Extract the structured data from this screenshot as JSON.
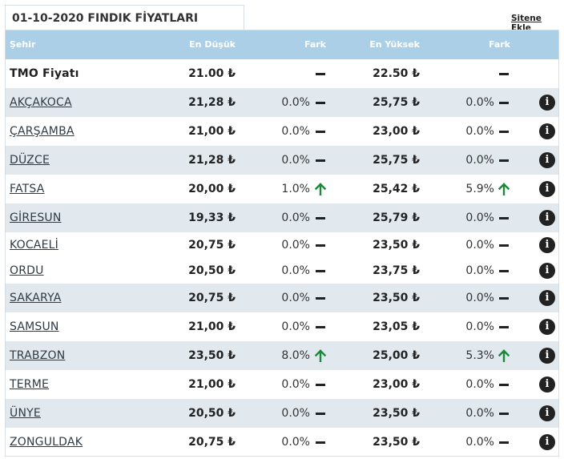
{
  "header": {
    "title": "01-10-2020 FINDIK FİYATLARI",
    "site_link": "Sitene Ekle"
  },
  "columns": {
    "city": "Şehir",
    "low": "En Düşük",
    "diff_low": "Fark",
    "high": "En Yüksek",
    "diff_high": "Fark"
  },
  "colors": {
    "header_bg": "#abcfe6",
    "row_alt": "#e1e9ef",
    "up_arrow": "#1a8a3a"
  },
  "rows": [
    {
      "city": "TMO Fiyatı",
      "low": "21.00 ₺",
      "diff_low": "",
      "trend_low": "flat",
      "high": "22.50 ₺",
      "diff_high": "",
      "trend_high": "flat",
      "info": false,
      "link": false
    },
    {
      "city": "AKÇAKOCA",
      "low": "21,28 ₺",
      "diff_low": "0.0%",
      "trend_low": "flat",
      "high": "25,75 ₺",
      "diff_high": "0.0%",
      "trend_high": "flat",
      "info": true,
      "link": true
    },
    {
      "city": "ÇARŞAMBA",
      "low": "21,00 ₺",
      "diff_low": "0.0%",
      "trend_low": "flat",
      "high": "23,00 ₺",
      "diff_high": "0.0%",
      "trend_high": "flat",
      "info": true,
      "link": true
    },
    {
      "city": "DÜZCE",
      "low": "21,28 ₺",
      "diff_low": "0.0%",
      "trend_low": "flat",
      "high": "25,75 ₺",
      "diff_high": "0.0%",
      "trend_high": "flat",
      "info": true,
      "link": true
    },
    {
      "city": "FATSA",
      "low": "20,00 ₺",
      "diff_low": "1.0%",
      "trend_low": "up",
      "high": "25,42 ₺",
      "diff_high": "5.9%",
      "trend_high": "up",
      "info": true,
      "link": true
    },
    {
      "city": "GİRESUN",
      "low": "19,33 ₺",
      "diff_low": "0.0%",
      "trend_low": "flat",
      "high": "25,79 ₺",
      "diff_high": "0.0%",
      "trend_high": "flat",
      "info": true,
      "link": true
    },
    {
      "city": "KOCAELİ",
      "low": "20,75 ₺",
      "diff_low": "0.0%",
      "trend_low": "flat",
      "high": "23,50 ₺",
      "diff_high": "0.0%",
      "trend_high": "flat",
      "info": true,
      "link": true
    },
    {
      "city": "ORDU",
      "low": "20,50 ₺",
      "diff_low": "0.0%",
      "trend_low": "flat",
      "high": "23,75 ₺",
      "diff_high": "0.0%",
      "trend_high": "flat",
      "info": true,
      "link": true
    },
    {
      "city": "SAKARYA",
      "low": "20,75 ₺",
      "diff_low": "0.0%",
      "trend_low": "flat",
      "high": "23,50 ₺",
      "diff_high": "0.0%",
      "trend_high": "flat",
      "info": true,
      "link": true
    },
    {
      "city": "SAMSUN",
      "low": "21,00 ₺",
      "diff_low": "0.0%",
      "trend_low": "flat",
      "high": "23,05 ₺",
      "diff_high": "0.0%",
      "trend_high": "flat",
      "info": true,
      "link": true
    },
    {
      "city": "TRABZON",
      "low": "23,50 ₺",
      "diff_low": "8.0%",
      "trend_low": "up",
      "high": "25,00 ₺",
      "diff_high": "5.3%",
      "trend_high": "up",
      "info": true,
      "link": true
    },
    {
      "city": "TERME",
      "low": "21,00 ₺",
      "diff_low": "0.0%",
      "trend_low": "flat",
      "high": "23,00 ₺",
      "diff_high": "0.0%",
      "trend_high": "flat",
      "info": true,
      "link": true
    },
    {
      "city": "ÜNYE",
      "low": "20,50 ₺",
      "diff_low": "0.0%",
      "trend_low": "flat",
      "high": "23,50 ₺",
      "diff_high": "0.0%",
      "trend_high": "flat",
      "info": true,
      "link": true
    },
    {
      "city": "ZONGULDAK",
      "low": "20,75 ₺",
      "diff_low": "0.0%",
      "trend_low": "flat",
      "high": "23,50 ₺",
      "diff_high": "0.0%",
      "trend_high": "flat",
      "info": true,
      "link": true
    }
  ]
}
